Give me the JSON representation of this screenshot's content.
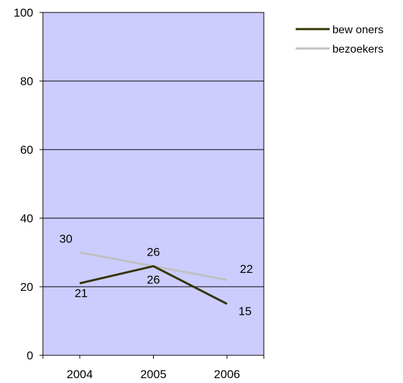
{
  "chart_data": {
    "type": "line",
    "categories": [
      "2004",
      "2005",
      "2006"
    ],
    "ylim": [
      0,
      100
    ],
    "yticks": [
      0,
      20,
      40,
      60,
      80,
      100
    ],
    "grid": true,
    "legend_position": "top-right",
    "plot_background": "#ccccff",
    "series": [
      {
        "name": "bew oners",
        "values": [
          21,
          26,
          15
        ],
        "color": "#333300",
        "labels": [
          "21",
          "26",
          "15"
        ]
      },
      {
        "name": "bezoekers",
        "values": [
          30,
          26,
          22
        ],
        "color": "#c0c0c0",
        "labels": [
          "30",
          "26",
          "22"
        ]
      }
    ]
  }
}
